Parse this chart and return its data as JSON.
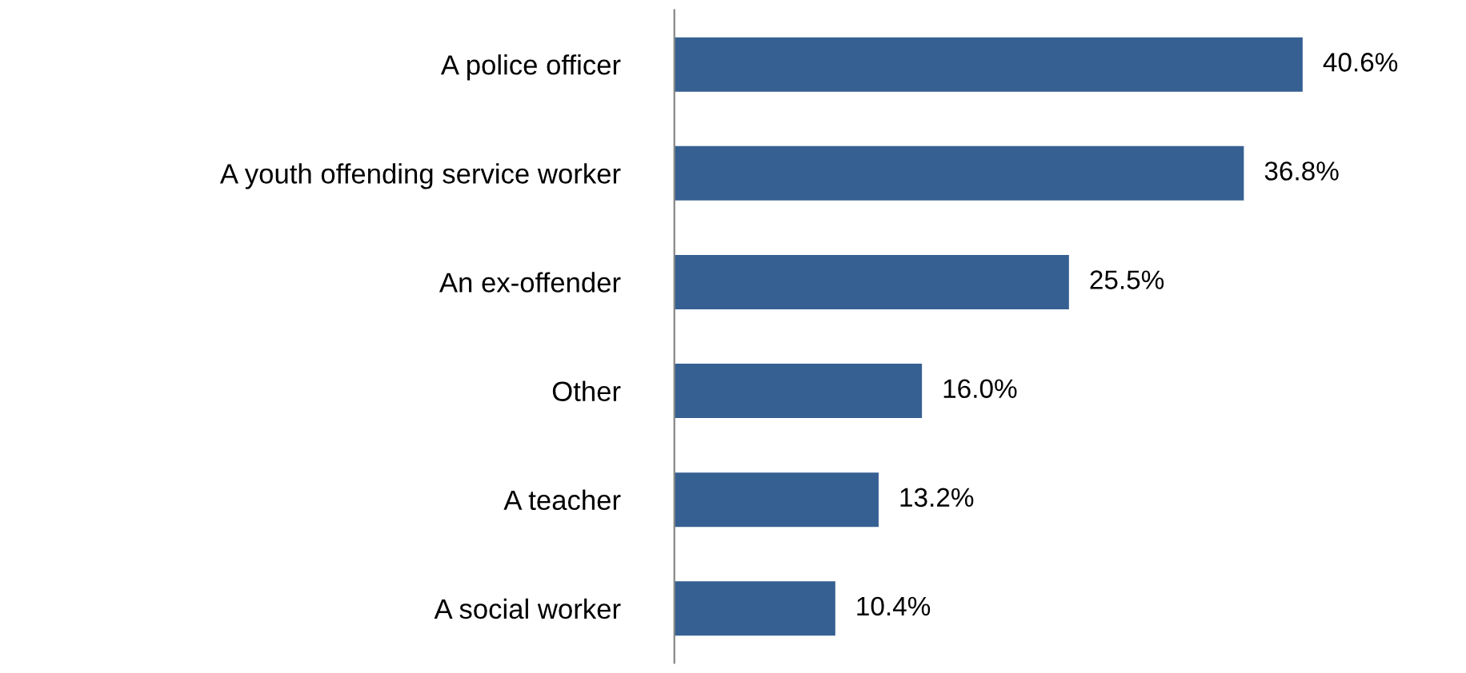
{
  "chart_data": {
    "type": "bar",
    "orientation": "horizontal",
    "categories": [
      "A police officer",
      "A youth offending service worker",
      "An ex-offender",
      "Other",
      "A teacher",
      "A social worker"
    ],
    "values": [
      40.6,
      36.8,
      25.5,
      16.0,
      13.2,
      10.4
    ],
    "value_labels": [
      "40.6%",
      "36.8%",
      "25.5%",
      "16.0%",
      "13.2%",
      "10.4%"
    ],
    "color": "#366092",
    "grid": false,
    "legend": false,
    "tick_labels": "y"
  }
}
